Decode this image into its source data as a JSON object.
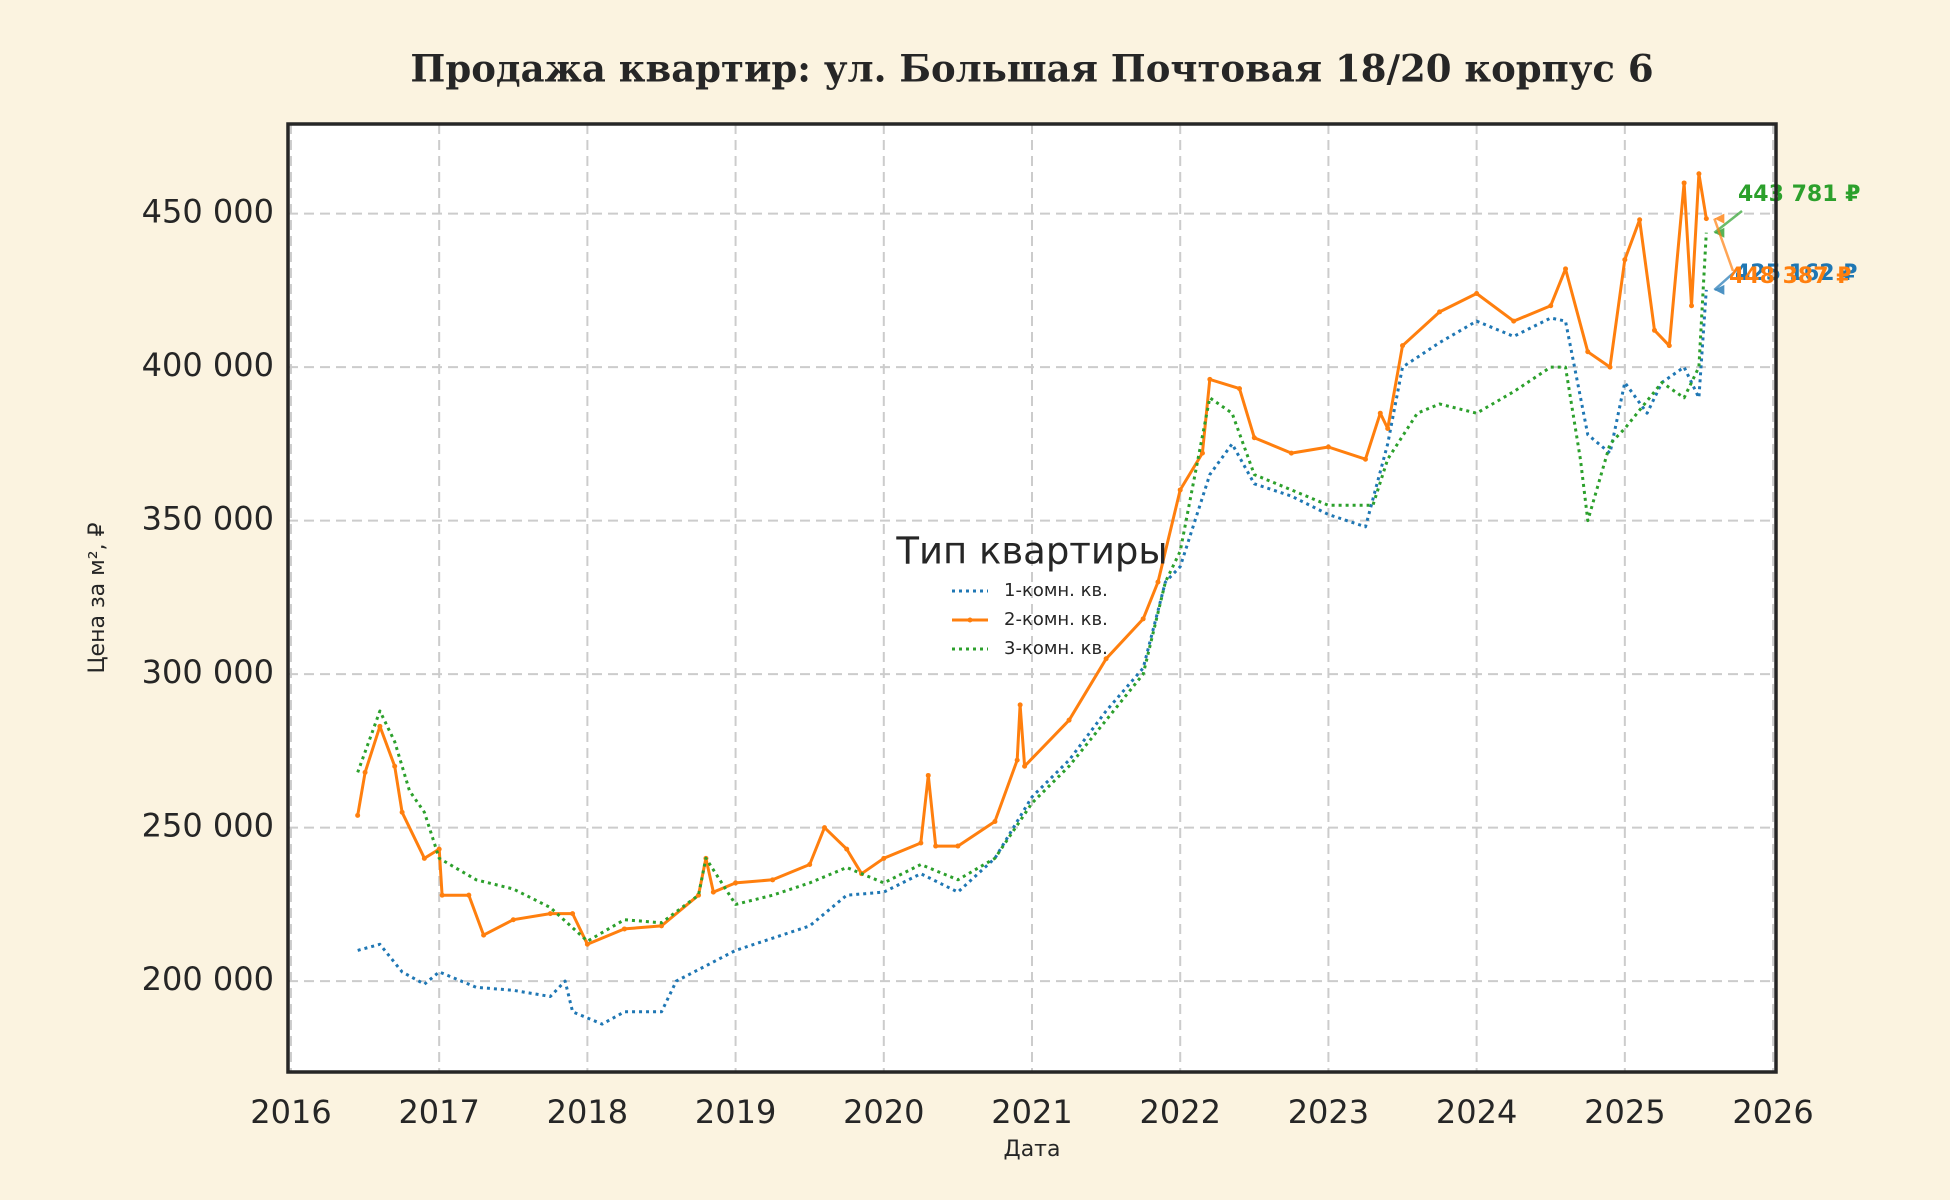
{
  "chart_data": {
    "type": "line",
    "title": "Продажа квартир: ул. Большая Почтовая 18/20 корпус 6",
    "xlabel": "Дата",
    "ylabel": "Цена за м², ₽",
    "xlim": [
      2015.98,
      2026.02
    ],
    "xticks": [
      2016,
      2017,
      2018,
      2019,
      2020,
      2021,
      2022,
      2023,
      2024,
      2025,
      2026
    ],
    "ylim": [
      170400,
      479200
    ],
    "yticks": [
      {
        "value": 200000,
        "label": "200 000"
      },
      {
        "value": 250000,
        "label": "250 000"
      },
      {
        "value": 300000,
        "label": "300 000"
      },
      {
        "value": 350000,
        "label": "350 000"
      },
      {
        "value": 400000,
        "label": "400 000"
      },
      {
        "value": 450000,
        "label": "450 000"
      }
    ],
    "grid": true,
    "legend_loc": "center",
    "legend_title": "Тип квартиры",
    "series": [
      {
        "name": "1-комн. кв.",
        "color": "#1f77b4",
        "linestyle": "dotted",
        "marker": false,
        "x": [
          2016.45,
          2016.6,
          2016.75,
          2016.9,
          2017.0,
          2017.25,
          2017.5,
          2017.75,
          2017.85,
          2017.9,
          2018.1,
          2018.25,
          2018.5,
          2018.6,
          2018.8,
          2019.0,
          2019.25,
          2019.5,
          2019.75,
          2020.0,
          2020.25,
          2020.5,
          2020.75,
          2021.0,
          2021.25,
          2021.5,
          2021.75,
          2021.9,
          2022.0,
          2022.2,
          2022.35,
          2022.5,
          2022.75,
          2023.0,
          2023.25,
          2023.4,
          2023.5,
          2023.75,
          2024.0,
          2024.25,
          2024.5,
          2024.6,
          2024.75,
          2024.9,
          2025.0,
          2025.15,
          2025.25,
          2025.4,
          2025.5,
          2025.55
        ],
        "values": [
          210000,
          212000,
          203000,
          199000,
          203000,
          198000,
          197000,
          195000,
          200000,
          190000,
          186000,
          190000,
          190000,
          200000,
          205000,
          210000,
          214000,
          218000,
          228000,
          229000,
          235000,
          229000,
          240000,
          260000,
          272000,
          288000,
          302000,
          330000,
          335000,
          365000,
          375000,
          362000,
          358000,
          352000,
          348000,
          375000,
          400000,
          408000,
          415000,
          410000,
          416000,
          415000,
          378000,
          372000,
          395000,
          385000,
          395000,
          400000,
          390000,
          425162
        ]
      },
      {
        "name": "2-комн. кв.",
        "color": "#ff7f0e",
        "linestyle": "solid",
        "marker": true,
        "x": [
          2016.45,
          2016.5,
          2016.6,
          2016.7,
          2016.75,
          2016.9,
          2017.0,
          2017.02,
          2017.2,
          2017.3,
          2017.5,
          2017.75,
          2017.9,
          2018.0,
          2018.25,
          2018.5,
          2018.75,
          2018.8,
          2018.85,
          2019.0,
          2019.25,
          2019.5,
          2019.6,
          2019.75,
          2019.85,
          2020.0,
          2020.25,
          2020.3,
          2020.35,
          2020.5,
          2020.75,
          2020.9,
          2020.92,
          2020.95,
          2021.25,
          2021.5,
          2021.75,
          2021.85,
          2022.0,
          2022.15,
          2022.2,
          2022.4,
          2022.5,
          2022.75,
          2023.0,
          2023.25,
          2023.35,
          2023.4,
          2023.5,
          2023.75,
          2024.0,
          2024.25,
          2024.5,
          2024.6,
          2024.75,
          2024.9,
          2025.0,
          2025.1,
          2025.2,
          2025.3,
          2025.4,
          2025.45,
          2025.5,
          2025.55
        ],
        "values": [
          254000,
          268000,
          283000,
          270000,
          255000,
          240000,
          243000,
          228000,
          228000,
          215000,
          220000,
          222000,
          222000,
          212000,
          217000,
          218000,
          228000,
          240000,
          229000,
          232000,
          233000,
          238000,
          250000,
          243000,
          235000,
          240000,
          245000,
          267000,
          244000,
          244000,
          252000,
          272000,
          290000,
          270000,
          285000,
          305000,
          318000,
          330000,
          360000,
          372000,
          396000,
          393000,
          377000,
          372000,
          374000,
          370000,
          385000,
          380000,
          407000,
          418000,
          424000,
          415000,
          420000,
          432000,
          405000,
          400000,
          435000,
          448000,
          412000,
          407000,
          460000,
          420000,
          463000,
          448387
        ]
      },
      {
        "name": "3-комн. кв.",
        "color": "#2ca02c",
        "linestyle": "dotted",
        "marker": false,
        "x": [
          2016.45,
          2016.6,
          2016.7,
          2016.8,
          2016.9,
          2017.0,
          2017.25,
          2017.5,
          2017.75,
          2018.0,
          2018.25,
          2018.5,
          2018.75,
          2018.8,
          2019.0,
          2019.25,
          2019.5,
          2019.75,
          2020.0,
          2020.25,
          2020.5,
          2020.75,
          2021.0,
          2021.25,
          2021.5,
          2021.75,
          2021.9,
          2022.0,
          2022.2,
          2022.35,
          2022.5,
          2022.75,
          2023.0,
          2023.3,
          2023.4,
          2023.6,
          2023.75,
          2024.0,
          2024.25,
          2024.5,
          2024.6,
          2024.7,
          2024.75,
          2024.9,
          2025.0,
          2025.25,
          2025.4,
          2025.5,
          2025.55
        ],
        "values": [
          268000,
          288000,
          278000,
          262000,
          255000,
          240000,
          233000,
          230000,
          224000,
          213000,
          220000,
          219000,
          228000,
          240000,
          225000,
          228000,
          232000,
          237000,
          232000,
          238000,
          233000,
          240000,
          258000,
          270000,
          285000,
          300000,
          330000,
          340000,
          390000,
          385000,
          365000,
          360000,
          355000,
          355000,
          370000,
          385000,
          388000,
          385000,
          392000,
          400000,
          400000,
          370000,
          350000,
          375000,
          380000,
          395000,
          390000,
          400000,
          443781
        ]
      }
    ],
    "annotations": [
      {
        "text": "443 781 ₽",
        "color": "#2ca02c"
      },
      {
        "text": "425 162 ₽",
        "color": "#1f77b4"
      },
      {
        "text": "448 387 ₽",
        "color": "#ff7f0e"
      }
    ]
  }
}
